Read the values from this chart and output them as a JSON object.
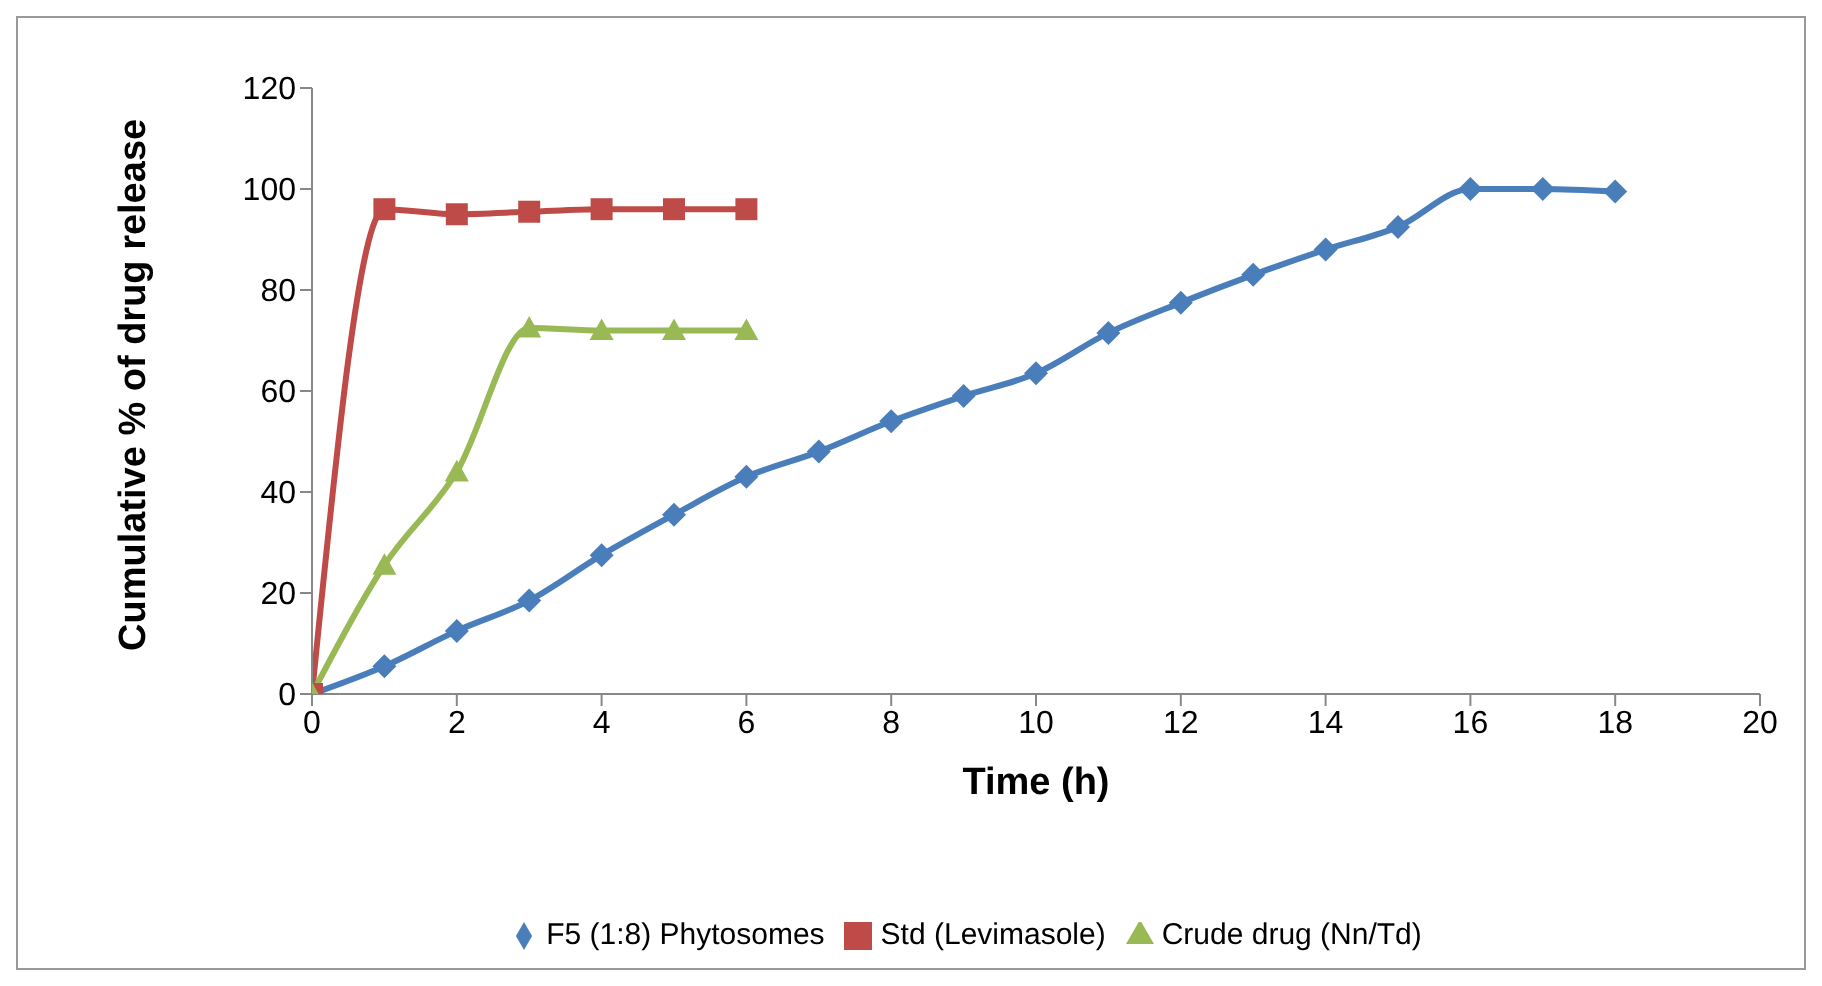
{
  "chart_data": {
    "type": "line",
    "xlabel": "Time (h)",
    "ylabel": "Cumulative % of drug release",
    "x": [
      0,
      1,
      2,
      3,
      4,
      5,
      6,
      7,
      8,
      9,
      10,
      11,
      12,
      13,
      14,
      15,
      16,
      17,
      18
    ],
    "series": [
      {
        "name": "F5 (1:8) Phytosomes",
        "color": "#4a7ebb",
        "marker": "diamond",
        "values": [
          0,
          5.5,
          12.5,
          18.5,
          27.5,
          35.5,
          43,
          48,
          54,
          59,
          63.5,
          71.5,
          77.5,
          83,
          88,
          92.5,
          100,
          100,
          99.5
        ]
      },
      {
        "name": "Std (Levimasole)",
        "color": "#be4b48",
        "marker": "square",
        "values": [
          0,
          96,
          95,
          95.5,
          96,
          96,
          96,
          null,
          null,
          null,
          null,
          null,
          null,
          null,
          null,
          null,
          null,
          null,
          null
        ]
      },
      {
        "name": "Crude drug (Nn/Td)",
        "color": "#98b954",
        "marker": "triangle",
        "values": [
          0,
          25.5,
          44,
          72.5,
          72,
          72,
          72,
          null,
          null,
          null,
          null,
          null,
          null,
          null,
          null,
          null,
          null,
          null,
          null
        ]
      }
    ],
    "xlim": [
      0,
      20
    ],
    "xticks": [
      0,
      2,
      4,
      6,
      8,
      10,
      12,
      14,
      16,
      18,
      20
    ],
    "ylim": [
      0,
      120
    ],
    "yticks": [
      0,
      20,
      40,
      60,
      80,
      100,
      120
    ],
    "grid": false,
    "legend": "bottom",
    "line_style": "solid"
  }
}
